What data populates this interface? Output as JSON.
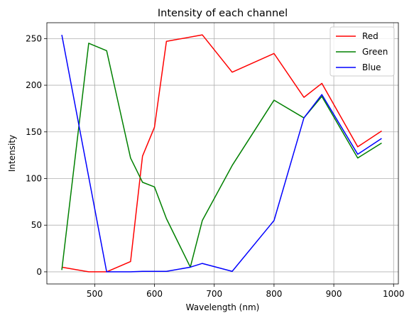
{
  "chart_data": {
    "type": "line",
    "title": "Intensity of each channel",
    "xlabel": "Wavelength (nm)",
    "ylabel": "Intensity",
    "xlim": [
      420,
      1008
    ],
    "ylim": [
      -13,
      267
    ],
    "xticks": [
      500,
      600,
      700,
      800,
      900,
      1000
    ],
    "yticks": [
      0,
      50,
      100,
      150,
      200,
      250
    ],
    "grid": true,
    "legend_position": "top-right",
    "series": [
      {
        "name": "Red",
        "color": "#ff0000",
        "x": [
          445,
          490,
          520,
          560,
          580,
          600,
          620,
          680,
          730,
          800,
          850,
          880,
          940,
          980
        ],
        "y": [
          5,
          0,
          0,
          11,
          124,
          155,
          247,
          254,
          214,
          234,
          187,
          202,
          134,
          151
        ]
      },
      {
        "name": "Green",
        "color": "#008000",
        "x": [
          445,
          490,
          520,
          560,
          580,
          600,
          620,
          660,
          680,
          730,
          800,
          850,
          880,
          940,
          980
        ],
        "y": [
          2,
          245,
          237,
          122,
          96,
          91,
          57,
          5,
          55,
          114,
          184,
          165,
          188,
          122,
          138
        ]
      },
      {
        "name": "Blue",
        "color": "#0000ff",
        "x": [
          445,
          520,
          560,
          580,
          620,
          660,
          680,
          730,
          800,
          850,
          880,
          940,
          980
        ],
        "y": [
          254,
          0,
          0,
          0.5,
          0.5,
          5,
          9,
          0.5,
          55,
          165,
          190,
          126,
          143
        ]
      }
    ]
  }
}
